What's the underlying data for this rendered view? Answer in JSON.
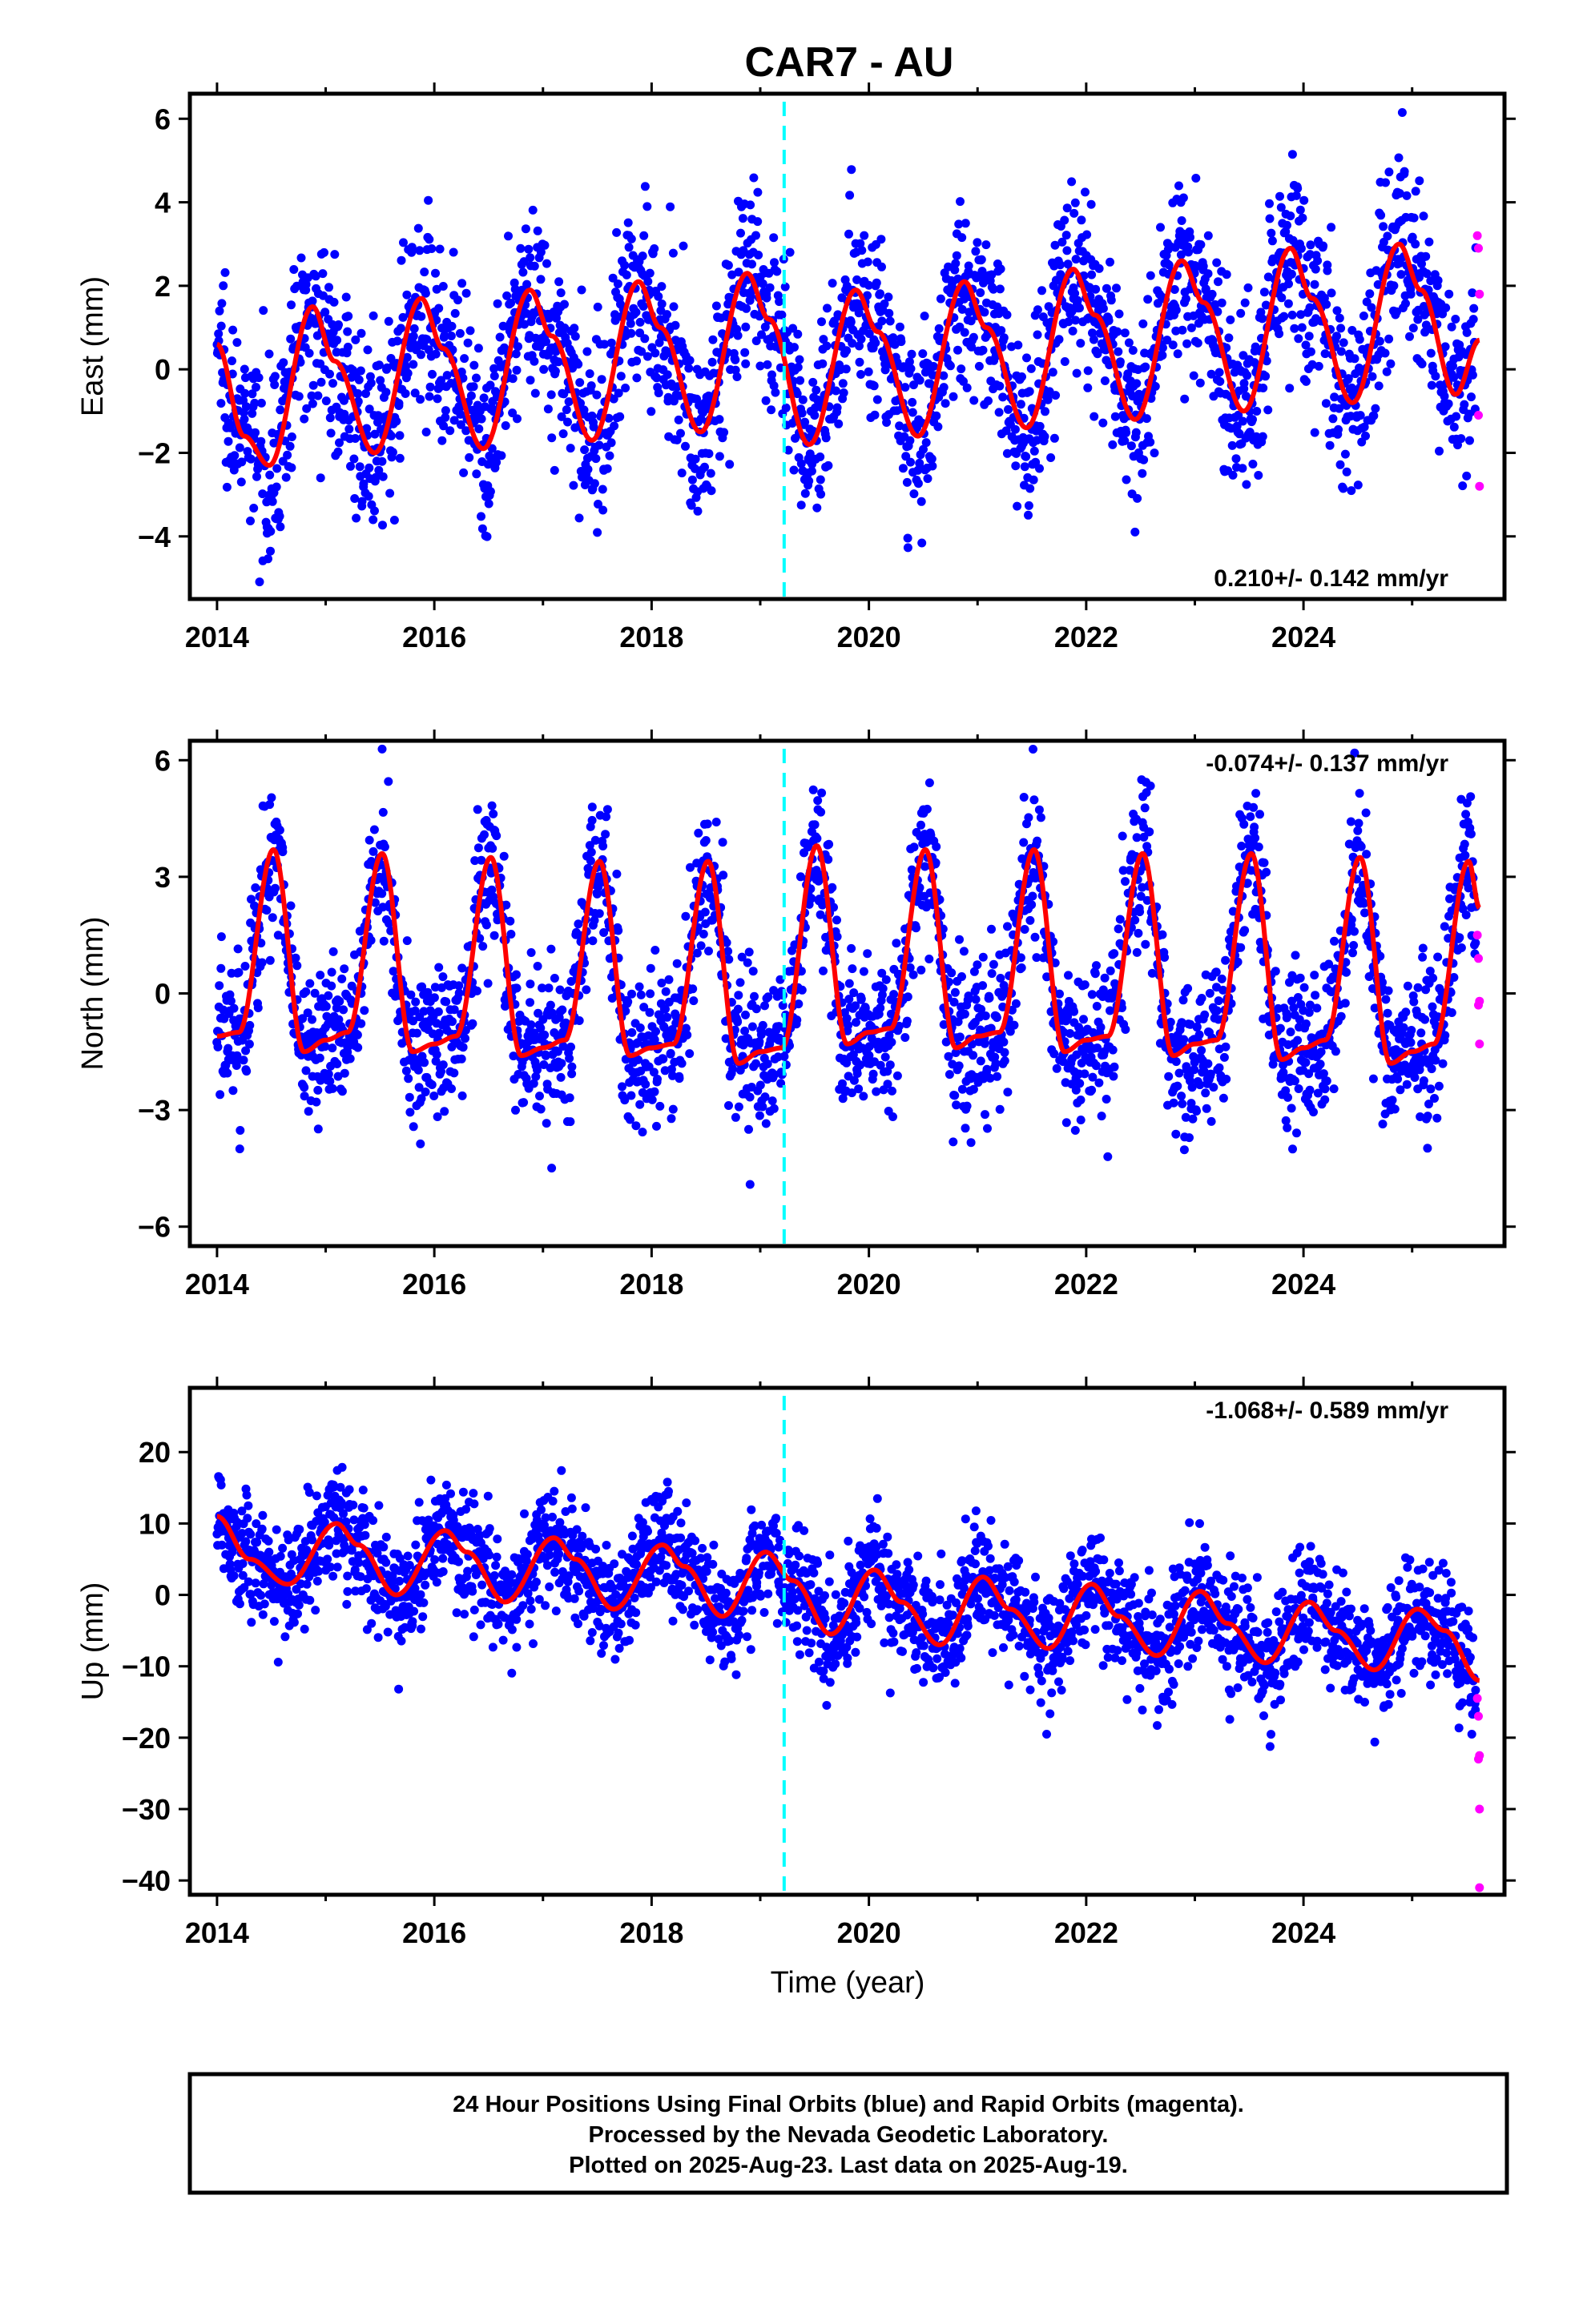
{
  "title": "CAR7 - AU",
  "x_axis_label": "Time (year)",
  "footer": {
    "line1": "24 Hour Positions Using Final Orbits (blue) and Rapid Orbits (magenta).",
    "line2": "Processed by the Nevada Geodetic Laboratory.",
    "line3": "Plotted on 2025-Aug-23. Last data on 2025-Aug-19."
  },
  "colors": {
    "final_orbits": "#0000ff",
    "rapid_orbits": "#ff00ff",
    "model": "#ff0000",
    "equipment_change": "#00ffff"
  },
  "chart_data": [
    {
      "type": "scatter",
      "component": "East",
      "ylabel": "East (mm)",
      "xlim": [
        2013.75,
        2025.85
      ],
      "ylim": [
        -5.5,
        6.6
      ],
      "x_ticks": [
        2014,
        2016,
        2018,
        2020,
        2022,
        2024
      ],
      "y_ticks": [
        -4,
        -2,
        0,
        2,
        4,
        6
      ],
      "grid": false,
      "rate_text": "0.210+/- 0.142 mm/yr",
      "rate_position": "bottom-right",
      "trend": {
        "rate_mm_per_yr": 0.21,
        "offset_mm": 0.3,
        "reference_year": 2019.5
      },
      "model_curve": [
        [
          2014.0,
          0.6
        ],
        [
          2014.25,
          -1.6
        ],
        [
          2014.48,
          -2.3
        ],
        [
          2014.88,
          1.5
        ],
        [
          2015.08,
          0.2
        ],
        [
          2015.45,
          -2.0
        ],
        [
          2015.88,
          1.7
        ],
        [
          2016.08,
          0.5
        ],
        [
          2016.45,
          -1.9
        ],
        [
          2016.88,
          1.9
        ],
        [
          2017.08,
          0.8
        ],
        [
          2017.45,
          -1.7
        ],
        [
          2017.88,
          2.1
        ],
        [
          2018.08,
          1.0
        ],
        [
          2018.45,
          -1.5
        ],
        [
          2018.88,
          2.3
        ],
        [
          2019.08,
          1.2
        ],
        [
          2019.45,
          -1.8
        ],
        [
          2019.88,
          1.9
        ],
        [
          2020.08,
          0.9
        ],
        [
          2020.45,
          -1.6
        ],
        [
          2020.88,
          2.1
        ],
        [
          2021.08,
          1.0
        ],
        [
          2021.45,
          -1.4
        ],
        [
          2021.88,
          2.4
        ],
        [
          2022.08,
          1.3
        ],
        [
          2022.45,
          -1.2
        ],
        [
          2022.88,
          2.6
        ],
        [
          2023.08,
          1.6
        ],
        [
          2023.45,
          -1.0
        ],
        [
          2023.88,
          2.9
        ],
        [
          2024.08,
          1.7
        ],
        [
          2024.45,
          -0.8
        ],
        [
          2024.88,
          3.0
        ],
        [
          2025.08,
          1.9
        ],
        [
          2025.4,
          -0.6
        ],
        [
          2025.62,
          0.7
        ]
      ],
      "scatter_sd_mm": 1.1,
      "rapid_orbits": [
        [
          2025.6,
          3.2
        ],
        [
          2025.61,
          2.9
        ],
        [
          2025.62,
          1.8
        ],
        [
          2025.61,
          -1.1
        ],
        [
          2025.62,
          -2.8
        ]
      ],
      "equipment_change_year": 2019.22
    },
    {
      "type": "scatter",
      "component": "North",
      "ylabel": "North (mm)",
      "xlim": [
        2013.75,
        2025.85
      ],
      "ylim": [
        -6.5,
        6.5
      ],
      "x_ticks": [
        2014,
        2016,
        2018,
        2020,
        2022,
        2024
      ],
      "y_ticks": [
        -6,
        -3,
        0,
        3,
        6
      ],
      "grid": false,
      "rate_text": "-0.074+/- 0.137 mm/yr",
      "rate_position": "top-right",
      "trend": {
        "rate_mm_per_yr": -0.074,
        "offset_mm": 0.0,
        "reference_year": 2019.5
      },
      "model_curve": [
        [
          2014.0,
          -1.1
        ],
        [
          2014.2,
          -1.0
        ],
        [
          2014.52,
          3.7
        ],
        [
          2014.8,
          -1.5
        ],
        [
          2015.0,
          -1.2
        ],
        [
          2015.2,
          -1.0
        ],
        [
          2015.52,
          3.6
        ],
        [
          2015.8,
          -1.5
        ],
        [
          2016.0,
          -1.3
        ],
        [
          2016.2,
          -1.1
        ],
        [
          2016.52,
          3.5
        ],
        [
          2016.8,
          -1.6
        ],
        [
          2017.0,
          -1.4
        ],
        [
          2017.2,
          -1.2
        ],
        [
          2017.52,
          3.4
        ],
        [
          2017.8,
          -1.6
        ],
        [
          2018.0,
          -1.4
        ],
        [
          2018.2,
          -1.3
        ],
        [
          2018.52,
          3.4
        ],
        [
          2018.8,
          -1.8
        ],
        [
          2019.0,
          -1.5
        ],
        [
          2019.2,
          -1.4
        ],
        [
          2019.52,
          3.8
        ],
        [
          2019.8,
          -1.3
        ],
        [
          2020.0,
          -1.0
        ],
        [
          2020.2,
          -0.9
        ],
        [
          2020.52,
          3.7
        ],
        [
          2020.8,
          -1.4
        ],
        [
          2021.0,
          -1.1
        ],
        [
          2021.2,
          -1.0
        ],
        [
          2021.52,
          3.7
        ],
        [
          2021.8,
          -1.5
        ],
        [
          2022.0,
          -1.2
        ],
        [
          2022.2,
          -1.1
        ],
        [
          2022.52,
          3.6
        ],
        [
          2022.8,
          -1.6
        ],
        [
          2023.0,
          -1.3
        ],
        [
          2023.2,
          -1.2
        ],
        [
          2023.52,
          3.6
        ],
        [
          2023.8,
          -1.7
        ],
        [
          2024.0,
          -1.4
        ],
        [
          2024.2,
          -1.2
        ],
        [
          2024.52,
          3.5
        ],
        [
          2024.8,
          -1.8
        ],
        [
          2025.0,
          -1.5
        ],
        [
          2025.2,
          -1.3
        ],
        [
          2025.52,
          3.4
        ],
        [
          2025.62,
          2.2
        ]
      ],
      "scatter_sd_mm": 1.0,
      "rapid_orbits": [
        [
          2025.6,
          1.5
        ],
        [
          2025.61,
          0.9
        ],
        [
          2025.62,
          -0.2
        ],
        [
          2025.61,
          -0.3
        ],
        [
          2025.62,
          -1.3
        ]
      ],
      "equipment_change_year": 2019.22
    },
    {
      "type": "scatter",
      "component": "Up",
      "ylabel": "Up (mm)",
      "xlim": [
        2013.75,
        2025.85
      ],
      "ylim": [
        -42,
        29
      ],
      "x_ticks": [
        2014,
        2016,
        2018,
        2020,
        2022,
        2024
      ],
      "y_ticks": [
        -40,
        -30,
        -20,
        -10,
        0,
        10,
        20
      ],
      "grid": false,
      "rate_text": "-1.068+/- 0.589 mm/yr",
      "rate_position": "top-right",
      "trend": {
        "rate_mm_per_yr": -1.068,
        "offset_mm": 0.0,
        "reference_year": 2019.5
      },
      "model_curve": [
        [
          2014.0,
          11
        ],
        [
          2014.3,
          5
        ],
        [
          2014.65,
          1.5
        ],
        [
          2015.1,
          10
        ],
        [
          2015.3,
          7
        ],
        [
          2015.65,
          0
        ],
        [
          2016.1,
          9
        ],
        [
          2016.3,
          6
        ],
        [
          2016.65,
          -1
        ],
        [
          2017.1,
          8
        ],
        [
          2017.3,
          5
        ],
        [
          2017.65,
          -2
        ],
        [
          2018.1,
          7
        ],
        [
          2018.3,
          4
        ],
        [
          2018.65,
          -3
        ],
        [
          2019.05,
          6
        ],
        [
          2019.3,
          2
        ],
        [
          2019.65,
          -5.5
        ],
        [
          2020.05,
          3.5
        ],
        [
          2020.3,
          -1
        ],
        [
          2020.65,
          -7
        ],
        [
          2021.05,
          2.5
        ],
        [
          2021.3,
          -2
        ],
        [
          2021.65,
          -7.5
        ],
        [
          2022.05,
          1.5
        ],
        [
          2022.3,
          -3
        ],
        [
          2022.65,
          -8.5
        ],
        [
          2023.05,
          0.5
        ],
        [
          2023.3,
          -4
        ],
        [
          2023.65,
          -9.5
        ],
        [
          2024.05,
          -1
        ],
        [
          2024.3,
          -5
        ],
        [
          2024.65,
          -10.5
        ],
        [
          2025.05,
          -2
        ],
        [
          2025.3,
          -5
        ],
        [
          2025.62,
          -12
        ]
      ],
      "scatter_sd_mm": 4.0,
      "rapid_orbits": [
        [
          2025.6,
          -14.5
        ],
        [
          2025.61,
          -17
        ],
        [
          2025.62,
          -22.5
        ],
        [
          2025.61,
          -23
        ],
        [
          2025.62,
          -30
        ],
        [
          2025.62,
          -41
        ]
      ],
      "equipment_change_year": 2019.22
    }
  ]
}
